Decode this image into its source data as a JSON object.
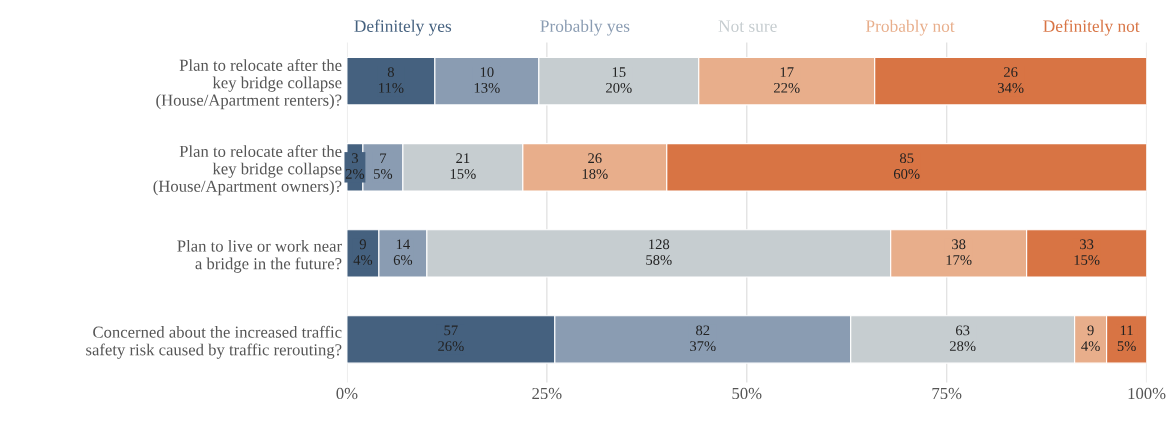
{
  "chart_data": {
    "type": "bar",
    "orientation": "horizontal",
    "stacked": true,
    "categories": [
      "Plan to relocate after the\nkey bridge collapse\n(House/Apartment renters)?",
      "Plan to relocate after the\nkey bridge collapse\n(House/Apartment owners)?",
      "Plan to live or work near\na bridge in the future?",
      "Concerned about the increased traffic\nsafety risk caused by traffic rerouting?"
    ],
    "series": [
      {
        "name": "Definitely yes",
        "color": "#45617f",
        "values": [
          11,
          2,
          4,
          26
        ],
        "value_labels": [
          "8\n11%",
          "3\n2%",
          "9\n4%",
          "57\n26%"
        ]
      },
      {
        "name": "Probably yes",
        "color": "#8a9cb2",
        "values": [
          13,
          5,
          6,
          37
        ],
        "value_labels": [
          "10\n13%",
          "7\n5%",
          "14\n6%",
          "82\n37%"
        ]
      },
      {
        "name": "Not sure",
        "color": "#c6cdd0",
        "values": [
          20,
          15,
          58,
          28
        ],
        "value_labels": [
          "15\n20%",
          "21\n15%",
          "128\n58%",
          "63\n28%"
        ]
      },
      {
        "name": "Probably not",
        "color": "#e8ae8b",
        "values": [
          22,
          18,
          17,
          4
        ],
        "value_labels": [
          "17\n22%",
          "26\n18%",
          "38\n17%",
          "9\n4%"
        ]
      },
      {
        "name": "Definitely not",
        "color": "#d87444",
        "values": [
          34,
          60,
          15,
          5
        ],
        "value_labels": [
          "26\n34%",
          "85\n60%",
          "33\n15%",
          "11\n5%"
        ]
      }
    ],
    "xlim": [
      0,
      100
    ],
    "xticks": [
      {
        "value": 0,
        "label": "0%"
      },
      {
        "value": 25,
        "label": "25%"
      },
      {
        "value": 50,
        "label": "50%"
      },
      {
        "value": 75,
        "label": "75%"
      },
      {
        "value": 100,
        "label": "100%"
      }
    ],
    "grid": "x",
    "legend": "top"
  }
}
